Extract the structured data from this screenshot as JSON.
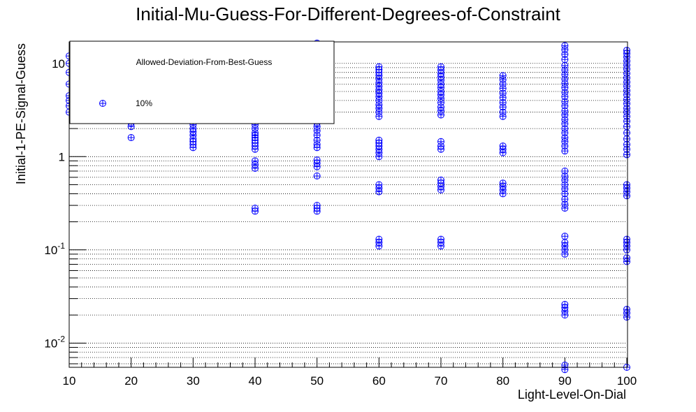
{
  "chart_data": {
    "type": "scatter",
    "title": "Initial-Mu-Guess-For-Different-Degrees-of-Constraint",
    "xlabel": "Light-Level-On-Dial",
    "ylabel": "Initial-1-PE-Signal-Guess",
    "xlim": [
      10,
      100
    ],
    "ylim": [
      0.0055,
      17
    ],
    "yscale": "log",
    "grid": "horizontal dotted lines",
    "x_ticks": [
      "10",
      "20",
      "30",
      "40",
      "50",
      "60",
      "70",
      "80",
      "90",
      "100"
    ],
    "y_ticks": [
      {
        "value": 0.01,
        "base": "10",
        "exp": "-2"
      },
      {
        "value": 0.1,
        "base": "10",
        "exp": "-1"
      },
      {
        "value": 1,
        "base": "1",
        "exp": ""
      },
      {
        "value": 10,
        "base": "10",
        "exp": ""
      }
    ],
    "legend": {
      "title": "Allowed-Deviation-From-Best-Guess",
      "placement": "top-left",
      "entries": [
        {
          "label": "10%",
          "color": "#0000ff",
          "marker": "circle-plus"
        }
      ]
    },
    "series": [
      {
        "name": "10%",
        "color": "#0000ff",
        "points": [
          {
            "x": 10,
            "y": 3
          },
          {
            "x": 10,
            "y": 3.5
          },
          {
            "x": 10,
            "y": 4
          },
          {
            "x": 10,
            "y": 4.5
          },
          {
            "x": 10,
            "y": 6
          },
          {
            "x": 10,
            "y": 8
          },
          {
            "x": 10,
            "y": 10
          },
          {
            "x": 10,
            "y": 12
          },
          {
            "x": 20,
            "y": 1.6
          },
          {
            "x": 20,
            "y": 2.1
          },
          {
            "x": 20,
            "y": 2.3
          },
          {
            "x": 20,
            "y": 2.6
          },
          {
            "x": 20,
            "y": 16
          },
          {
            "x": 30,
            "y": 1.25
          },
          {
            "x": 30,
            "y": 1.35
          },
          {
            "x": 30,
            "y": 1.45
          },
          {
            "x": 30,
            "y": 1.55
          },
          {
            "x": 30,
            "y": 1.7
          },
          {
            "x": 30,
            "y": 1.85
          },
          {
            "x": 30,
            "y": 2.0
          },
          {
            "x": 30,
            "y": 2.2
          },
          {
            "x": 30,
            "y": 15.5
          },
          {
            "x": 40,
            "y": 0.26
          },
          {
            "x": 40,
            "y": 0.28
          },
          {
            "x": 40,
            "y": 0.75
          },
          {
            "x": 40,
            "y": 0.82
          },
          {
            "x": 40,
            "y": 0.9
          },
          {
            "x": 40,
            "y": 1.2
          },
          {
            "x": 40,
            "y": 1.3
          },
          {
            "x": 40,
            "y": 1.4
          },
          {
            "x": 40,
            "y": 1.5
          },
          {
            "x": 40,
            "y": 1.6
          },
          {
            "x": 40,
            "y": 1.7
          },
          {
            "x": 40,
            "y": 1.8
          },
          {
            "x": 40,
            "y": 2.0
          },
          {
            "x": 40,
            "y": 2.2
          },
          {
            "x": 40,
            "y": 15.5
          },
          {
            "x": 50,
            "y": 0.26
          },
          {
            "x": 50,
            "y": 0.28
          },
          {
            "x": 50,
            "y": 0.3
          },
          {
            "x": 50,
            "y": 0.62
          },
          {
            "x": 50,
            "y": 0.78
          },
          {
            "x": 50,
            "y": 0.85
          },
          {
            "x": 50,
            "y": 0.92
          },
          {
            "x": 50,
            "y": 1.25
          },
          {
            "x": 50,
            "y": 1.35
          },
          {
            "x": 50,
            "y": 1.5
          },
          {
            "x": 50,
            "y": 1.7
          },
          {
            "x": 50,
            "y": 1.9
          },
          {
            "x": 50,
            "y": 2.1
          },
          {
            "x": 50,
            "y": 2.3
          },
          {
            "x": 50,
            "y": 16.5
          },
          {
            "x": 60,
            "y": 0.11
          },
          {
            "x": 60,
            "y": 0.12
          },
          {
            "x": 60,
            "y": 0.13
          },
          {
            "x": 60,
            "y": 0.42
          },
          {
            "x": 60,
            "y": 0.46
          },
          {
            "x": 60,
            "y": 0.5
          },
          {
            "x": 60,
            "y": 1.0
          },
          {
            "x": 60,
            "y": 1.1
          },
          {
            "x": 60,
            "y": 1.2
          },
          {
            "x": 60,
            "y": 1.3
          },
          {
            "x": 60,
            "y": 1.4
          },
          {
            "x": 60,
            "y": 1.5
          },
          {
            "x": 60,
            "y": 2.7
          },
          {
            "x": 60,
            "y": 3.0
          },
          {
            "x": 60,
            "y": 3.3
          },
          {
            "x": 60,
            "y": 3.6
          },
          {
            "x": 60,
            "y": 4.0
          },
          {
            "x": 60,
            "y": 4.4
          },
          {
            "x": 60,
            "y": 4.8
          },
          {
            "x": 60,
            "y": 5.2
          },
          {
            "x": 60,
            "y": 5.7
          },
          {
            "x": 60,
            "y": 6.2
          },
          {
            "x": 60,
            "y": 6.8
          },
          {
            "x": 60,
            "y": 7.4
          },
          {
            "x": 60,
            "y": 8.0
          },
          {
            "x": 60,
            "y": 8.6
          },
          {
            "x": 60,
            "y": 9.2
          },
          {
            "x": 70,
            "y": 0.11
          },
          {
            "x": 70,
            "y": 0.12
          },
          {
            "x": 70,
            "y": 0.13
          },
          {
            "x": 70,
            "y": 0.44
          },
          {
            "x": 70,
            "y": 0.48
          },
          {
            "x": 70,
            "y": 0.52
          },
          {
            "x": 70,
            "y": 0.56
          },
          {
            "x": 70,
            "y": 1.2
          },
          {
            "x": 70,
            "y": 1.3
          },
          {
            "x": 70,
            "y": 1.45
          },
          {
            "x": 70,
            "y": 2.8
          },
          {
            "x": 70,
            "y": 3.1
          },
          {
            "x": 70,
            "y": 3.4
          },
          {
            "x": 70,
            "y": 3.8
          },
          {
            "x": 70,
            "y": 4.2
          },
          {
            "x": 70,
            "y": 4.6
          },
          {
            "x": 70,
            "y": 5.0
          },
          {
            "x": 70,
            "y": 5.5
          },
          {
            "x": 70,
            "y": 6.0
          },
          {
            "x": 70,
            "y": 6.6
          },
          {
            "x": 70,
            "y": 7.2
          },
          {
            "x": 70,
            "y": 7.8
          },
          {
            "x": 70,
            "y": 8.5
          },
          {
            "x": 70,
            "y": 9.2
          },
          {
            "x": 80,
            "y": 0.4
          },
          {
            "x": 80,
            "y": 0.44
          },
          {
            "x": 80,
            "y": 0.48
          },
          {
            "x": 80,
            "y": 0.52
          },
          {
            "x": 80,
            "y": 1.1
          },
          {
            "x": 80,
            "y": 1.2
          },
          {
            "x": 80,
            "y": 1.3
          },
          {
            "x": 80,
            "y": 2.7
          },
          {
            "x": 80,
            "y": 3.0
          },
          {
            "x": 80,
            "y": 3.4
          },
          {
            "x": 80,
            "y": 3.8
          },
          {
            "x": 80,
            "y": 4.3
          },
          {
            "x": 80,
            "y": 4.8
          },
          {
            "x": 80,
            "y": 5.4
          },
          {
            "x": 80,
            "y": 6.0
          },
          {
            "x": 80,
            "y": 6.7
          },
          {
            "x": 80,
            "y": 7.4
          },
          {
            "x": 90,
            "y": 0.0052
          },
          {
            "x": 90,
            "y": 0.0058
          },
          {
            "x": 90,
            "y": 0.02
          },
          {
            "x": 90,
            "y": 0.022
          },
          {
            "x": 90,
            "y": 0.024
          },
          {
            "x": 90,
            "y": 0.026
          },
          {
            "x": 90,
            "y": 0.09
          },
          {
            "x": 90,
            "y": 0.1
          },
          {
            "x": 90,
            "y": 0.11
          },
          {
            "x": 90,
            "y": 0.12
          },
          {
            "x": 90,
            "y": 0.14
          },
          {
            "x": 90,
            "y": 0.28
          },
          {
            "x": 90,
            "y": 0.31
          },
          {
            "x": 90,
            "y": 0.35
          },
          {
            "x": 90,
            "y": 0.4
          },
          {
            "x": 90,
            "y": 0.45
          },
          {
            "x": 90,
            "y": 0.5
          },
          {
            "x": 90,
            "y": 0.56
          },
          {
            "x": 90,
            "y": 0.62
          },
          {
            "x": 90,
            "y": 0.7
          },
          {
            "x": 90,
            "y": 1.15
          },
          {
            "x": 90,
            "y": 1.3
          },
          {
            "x": 90,
            "y": 1.45
          },
          {
            "x": 90,
            "y": 1.6
          },
          {
            "x": 90,
            "y": 1.8
          },
          {
            "x": 90,
            "y": 2.0
          },
          {
            "x": 90,
            "y": 2.25
          },
          {
            "x": 90,
            "y": 2.5
          },
          {
            "x": 90,
            "y": 2.8
          },
          {
            "x": 90,
            "y": 3.1
          },
          {
            "x": 90,
            "y": 3.5
          },
          {
            "x": 90,
            "y": 3.9
          },
          {
            "x": 90,
            "y": 4.4
          },
          {
            "x": 90,
            "y": 4.9
          },
          {
            "x": 90,
            "y": 5.5
          },
          {
            "x": 90,
            "y": 6.1
          },
          {
            "x": 90,
            "y": 6.8
          },
          {
            "x": 90,
            "y": 7.6
          },
          {
            "x": 90,
            "y": 8.5
          },
          {
            "x": 90,
            "y": 9.5
          },
          {
            "x": 90,
            "y": 11
          },
          {
            "x": 90,
            "y": 12.5
          },
          {
            "x": 90,
            "y": 14
          },
          {
            "x": 90,
            "y": 15.5
          },
          {
            "x": 100,
            "y": 0.0055
          },
          {
            "x": 100,
            "y": 0.019
          },
          {
            "x": 100,
            "y": 0.021
          },
          {
            "x": 100,
            "y": 0.023
          },
          {
            "x": 100,
            "y": 0.075
          },
          {
            "x": 100,
            "y": 0.082
          },
          {
            "x": 100,
            "y": 0.1
          },
          {
            "x": 100,
            "y": 0.11
          },
          {
            "x": 100,
            "y": 0.12
          },
          {
            "x": 100,
            "y": 0.13
          },
          {
            "x": 100,
            "y": 0.38
          },
          {
            "x": 100,
            "y": 0.42
          },
          {
            "x": 100,
            "y": 0.46
          },
          {
            "x": 100,
            "y": 0.5
          },
          {
            "x": 100,
            "y": 1.05
          },
          {
            "x": 100,
            "y": 1.2
          },
          {
            "x": 100,
            "y": 1.35
          },
          {
            "x": 100,
            "y": 1.55
          },
          {
            "x": 100,
            "y": 1.8
          },
          {
            "x": 100,
            "y": 2.1
          },
          {
            "x": 100,
            "y": 2.4
          },
          {
            "x": 100,
            "y": 2.7
          },
          {
            "x": 100,
            "y": 3.0
          },
          {
            "x": 100,
            "y": 3.3
          },
          {
            "x": 100,
            "y": 3.7
          },
          {
            "x": 100,
            "y": 4.1
          },
          {
            "x": 100,
            "y": 4.6
          },
          {
            "x": 100,
            "y": 5.1
          },
          {
            "x": 100,
            "y": 5.7
          },
          {
            "x": 100,
            "y": 6.3
          },
          {
            "x": 100,
            "y": 7.0
          },
          {
            "x": 100,
            "y": 7.8
          },
          {
            "x": 100,
            "y": 8.7
          },
          {
            "x": 100,
            "y": 9.6
          },
          {
            "x": 100,
            "y": 10.6
          },
          {
            "x": 100,
            "y": 11.7
          },
          {
            "x": 100,
            "y": 12.8
          },
          {
            "x": 100,
            "y": 13.8
          }
        ]
      }
    ]
  }
}
